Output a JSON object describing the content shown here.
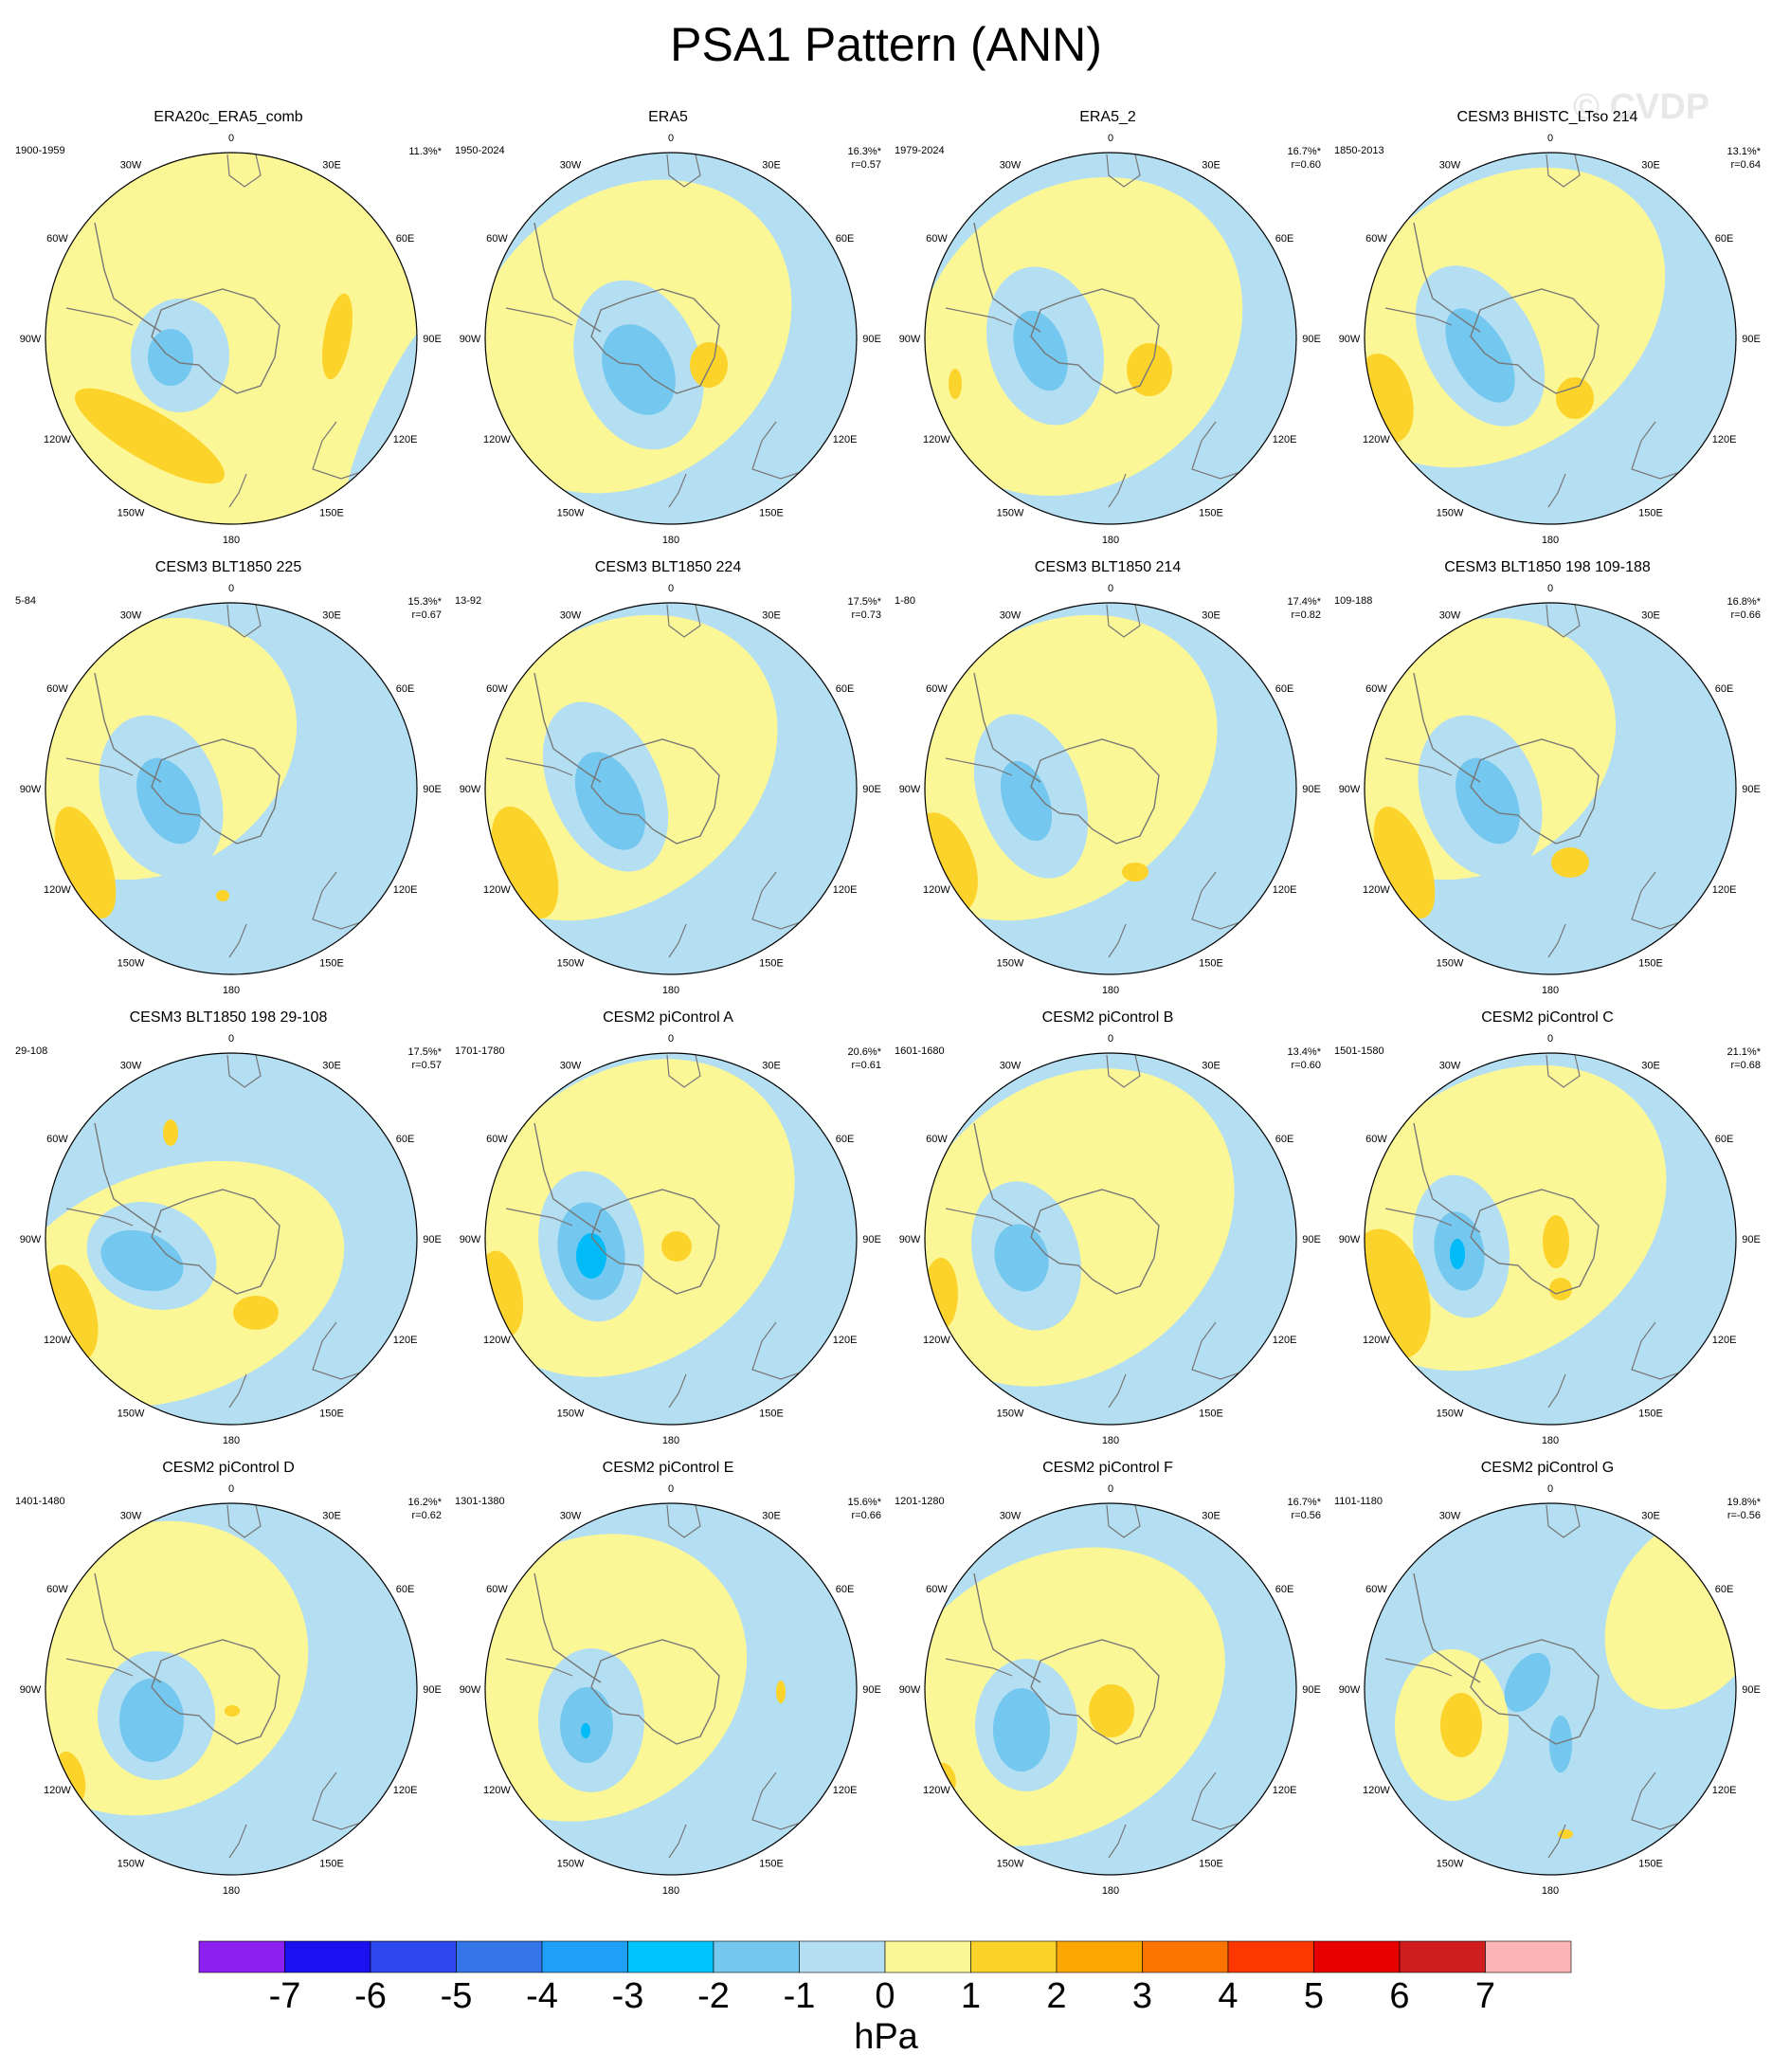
{
  "title": "PSA1 Pattern (ANN)",
  "watermark": "© CVDP",
  "units": "hPa",
  "lon_labels": [
    "0",
    "30E",
    "60E",
    "90E",
    "120E",
    "150E",
    "180",
    "150W",
    "120W",
    "90W",
    "60W",
    "30W"
  ],
  "colors": {
    "neg1": "#b4dff2",
    "neg2": "#74c7ee",
    "neg3": "#00bbf8",
    "pos1": "#fcf796",
    "pos2": "#fcd32a",
    "coast": "#777777"
  },
  "colorbar": {
    "colors": [
      "#8c20f0",
      "#1a10f0",
      "#2c48ee",
      "#3476ea",
      "#1fa0f8",
      "#00c4fc",
      "#74c7ee",
      "#b4dff2",
      "#fcf796",
      "#fcd32a",
      "#fca600",
      "#fc7400",
      "#fc3800",
      "#e80000",
      "#d01e1e",
      "#fcb4b4"
    ],
    "ticks": [
      "-7",
      "-6",
      "-5",
      "-4",
      "-3",
      "-2",
      "-1",
      "0",
      "1",
      "2",
      "3",
      "4",
      "5",
      "6",
      "7"
    ]
  },
  "panels": [
    {
      "title": "ERA20c_ERA5_comb",
      "period": "1900-1959",
      "pct": "11.3%*",
      "r": "",
      "bg": "pos1"
    },
    {
      "title": "ERA5",
      "period": "1950-2024",
      "pct": "16.3%*",
      "r": "r=0.57",
      "bg": "neg1"
    },
    {
      "title": "ERA5_2",
      "period": "1979-2024",
      "pct": "16.7%*",
      "r": "r=0.60",
      "bg": "neg1"
    },
    {
      "title": "CESM3 BHISTC_LTso 214",
      "period": "1850-2013",
      "pct": "13.1%*",
      "r": "r=0.64",
      "bg": "neg1"
    },
    {
      "title": "CESM3 BLT1850 225",
      "period": "5-84",
      "pct": "15.3%*",
      "r": "r=0.67",
      "bg": "neg1"
    },
    {
      "title": "CESM3 BLT1850 224",
      "period": "13-92",
      "pct": "17.5%*",
      "r": "r=0.73",
      "bg": "neg1"
    },
    {
      "title": "CESM3 BLT1850 214",
      "period": "1-80",
      "pct": "17.4%*",
      "r": "r=0.82",
      "bg": "neg1"
    },
    {
      "title": "CESM3 BLT1850 198 109-188",
      "period": "109-188",
      "pct": "16.8%*",
      "r": "r=0.66",
      "bg": "neg1"
    },
    {
      "title": "CESM3 BLT1850 198 29-108",
      "period": "29-108",
      "pct": "17.5%*",
      "r": "r=0.57",
      "bg": "neg1"
    },
    {
      "title": "CESM2 piControl A",
      "period": "1701-1780",
      "pct": "20.6%*",
      "r": "r=0.61",
      "bg": "neg1"
    },
    {
      "title": "CESM2 piControl B",
      "period": "1601-1680",
      "pct": "13.4%*",
      "r": "r=0.60",
      "bg": "neg1"
    },
    {
      "title": "CESM2 piControl C",
      "period": "1501-1580",
      "pct": "21.1%*",
      "r": "r=0.68",
      "bg": "neg1"
    },
    {
      "title": "CESM2 piControl D",
      "period": "1401-1480",
      "pct": "16.2%*",
      "r": "r=0.62",
      "bg": "neg1"
    },
    {
      "title": "CESM2 piControl E",
      "period": "1301-1380",
      "pct": "15.6%*",
      "r": "r=0.66",
      "bg": "neg1"
    },
    {
      "title": "CESM2 piControl F",
      "period": "1201-1280",
      "pct": "16.7%*",
      "r": "r=0.56",
      "bg": "neg1"
    },
    {
      "title": "CESM2 piControl G",
      "period": "1101-1180",
      "pct": "19.8%*",
      "r": "r=-0.56",
      "bg": "neg1"
    }
  ]
}
